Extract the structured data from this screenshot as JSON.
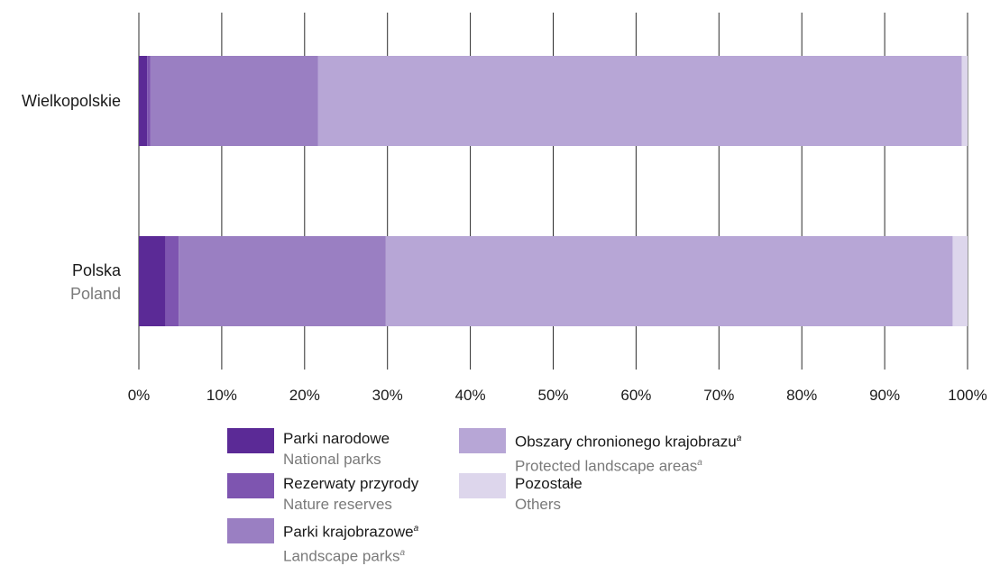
{
  "chart_data": {
    "type": "bar",
    "orientation": "horizontal",
    "stacked": "percent",
    "categories": [
      {
        "label": "Wielkopolskie",
        "sublabel": ""
      },
      {
        "label": "Polska",
        "sublabel": "Poland"
      }
    ],
    "series": [
      {
        "name": "Parki narodowe",
        "name_en": "National parks",
        "color": "#5b2a96",
        "values": [
          1.0,
          3.2
        ],
        "footnote": ""
      },
      {
        "name": "Rezerwaty przyrody",
        "name_en": "Nature reserves",
        "color": "#7e55b0",
        "values": [
          0.4,
          1.6
        ],
        "footnote": ""
      },
      {
        "name": "Parki krajobrazowe",
        "name_en": "Landscape parks",
        "color": "#9a7fc2",
        "values": [
          20.2,
          25.0
        ],
        "footnote": "a"
      },
      {
        "name": "Obszary chronionego krajobrazu",
        "name_en": "Protected landscape areas",
        "color": "#b7a6d6",
        "values": [
          77.7,
          68.4
        ],
        "footnote": "a"
      },
      {
        "name": "Pozostałe",
        "name_en": "Others",
        "color": "#ddd6ec",
        "values": [
          0.7,
          1.8
        ],
        "footnote": ""
      }
    ],
    "xticks": [
      "0%",
      "10%",
      "20%",
      "30%",
      "40%",
      "50%",
      "60%",
      "70%",
      "80%",
      "90%",
      "100%"
    ],
    "xlim": [
      0,
      100
    ],
    "grid": true,
    "legend_position": "bottom"
  }
}
